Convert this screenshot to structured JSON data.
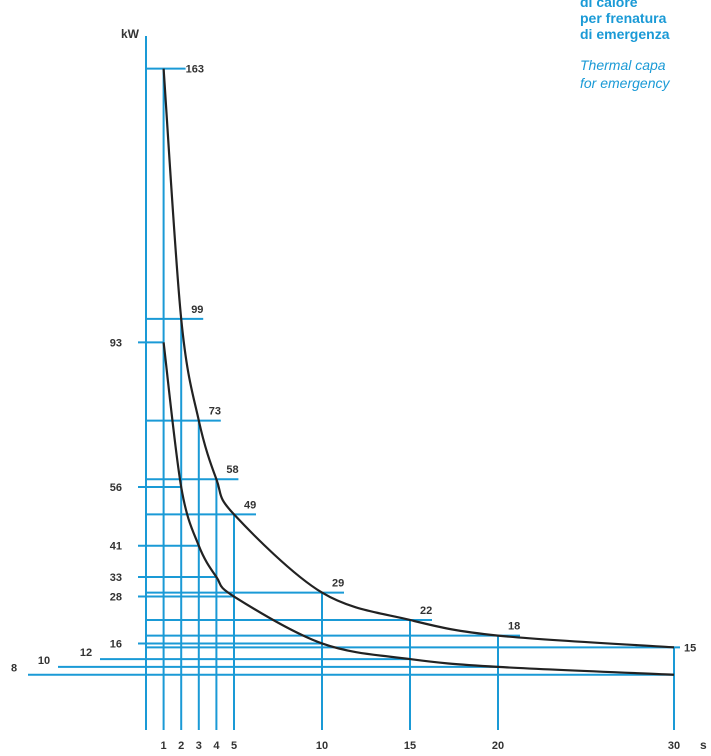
{
  "header": {
    "italian_lines": [
      "di calore",
      "per frenatura",
      "di emergenza"
    ],
    "english_lines": [
      "Thermal capa",
      "for emergency"
    ]
  },
  "colors": {
    "grid": "#1a9ad6",
    "curve": "#222222",
    "text": "#333333",
    "header": "#1a9ad6"
  },
  "chart_data": {
    "type": "line",
    "xlabel": "s",
    "ylabel": "kW",
    "xlim": [
      0,
      30
    ],
    "x_ticks": [
      1,
      2,
      3,
      4,
      5,
      10,
      15,
      20,
      30
    ],
    "y_left_ticks": [
      8,
      10,
      12,
      16,
      28,
      33,
      41,
      56,
      93
    ],
    "series": [
      {
        "values_labeled": [
          {
            "x": 1,
            "y": 163
          },
          {
            "x": 2,
            "y": 99
          },
          {
            "x": 3,
            "y": 73
          },
          {
            "x": 4,
            "y": 58
          },
          {
            "x": 5,
            "y": 49
          },
          {
            "x": 10,
            "y": 29
          },
          {
            "x": 15,
            "y": 22
          },
          {
            "x": 20,
            "y": 18
          },
          {
            "x": 30,
            "y": 15
          }
        ]
      },
      {
        "values_labeled": [
          {
            "x": 1,
            "y": 93
          },
          {
            "x": 2,
            "y": 56
          },
          {
            "x": 3,
            "y": 41
          },
          {
            "x": 4,
            "y": 33
          },
          {
            "x": 5,
            "y": 28
          },
          {
            "x": 10,
            "y": 16
          },
          {
            "x": 15,
            "y": 12
          },
          {
            "x": 20,
            "y": 10
          },
          {
            "x": 30,
            "y": 8
          }
        ]
      }
    ]
  }
}
